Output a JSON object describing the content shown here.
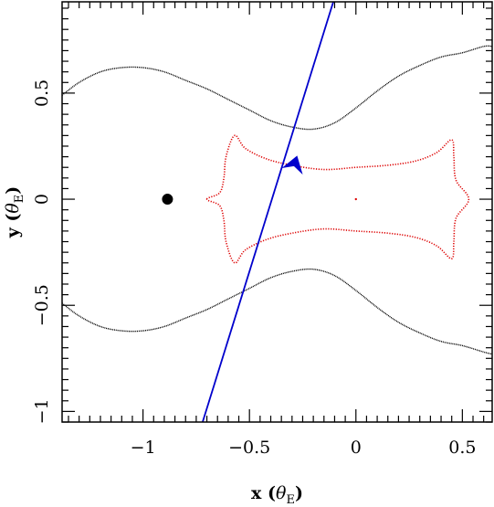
{
  "chart_data": {
    "type": "line",
    "xlabel": {
      "main": "x (",
      "symbol": "θ",
      "sub": "E",
      "close": ")"
    },
    "ylabel": {
      "main": "y (",
      "symbol": "θ",
      "sub": "E",
      "close": ")"
    },
    "xlim": [
      -1.38,
      0.64
    ],
    "ylim": [
      -1.05,
      0.93
    ],
    "x_ticks": [
      {
        "value": -1,
        "label": "−1"
      },
      {
        "value": -0.5,
        "label": "−0.5"
      },
      {
        "value": 0,
        "label": "0"
      },
      {
        "value": 0.5,
        "label": "0.5"
      }
    ],
    "y_ticks": [
      {
        "value": -1,
        "label": "−1"
      },
      {
        "value": -0.5,
        "label": "−0.5"
      },
      {
        "value": 0,
        "label": "0"
      },
      {
        "value": 0.5,
        "label": "0.5"
      }
    ],
    "series": [
      {
        "kind": "critical_curve_upper",
        "color": "#000000",
        "points": [
          [
            -1.38,
            0.49
          ],
          [
            -1.3,
            0.55
          ],
          [
            -1.2,
            0.6
          ],
          [
            -1.1,
            0.62
          ],
          [
            -1.0,
            0.62
          ],
          [
            -0.9,
            0.6
          ],
          [
            -0.8,
            0.56
          ],
          [
            -0.7,
            0.52
          ],
          [
            -0.6,
            0.47
          ],
          [
            -0.5,
            0.42
          ],
          [
            -0.4,
            0.37
          ],
          [
            -0.3,
            0.34
          ],
          [
            -0.2,
            0.33
          ],
          [
            -0.1,
            0.36
          ],
          [
            0.0,
            0.43
          ],
          [
            0.1,
            0.51
          ],
          [
            0.2,
            0.58
          ],
          [
            0.3,
            0.63
          ],
          [
            0.4,
            0.67
          ],
          [
            0.5,
            0.69
          ],
          [
            0.6,
            0.72
          ],
          [
            0.64,
            0.72
          ]
        ]
      },
      {
        "kind": "critical_curve_lower",
        "color": "#000000",
        "points": [
          [
            -1.38,
            -0.49
          ],
          [
            -1.3,
            -0.55
          ],
          [
            -1.2,
            -0.6
          ],
          [
            -1.1,
            -0.62
          ],
          [
            -1.0,
            -0.62
          ],
          [
            -0.9,
            -0.6
          ],
          [
            -0.8,
            -0.56
          ],
          [
            -0.7,
            -0.52
          ],
          [
            -0.6,
            -0.47
          ],
          [
            -0.5,
            -0.42
          ],
          [
            -0.4,
            -0.37
          ],
          [
            -0.3,
            -0.34
          ],
          [
            -0.2,
            -0.33
          ],
          [
            -0.1,
            -0.36
          ],
          [
            0.0,
            -0.43
          ],
          [
            0.1,
            -0.51
          ],
          [
            0.2,
            -0.58
          ],
          [
            0.3,
            -0.63
          ],
          [
            0.4,
            -0.67
          ],
          [
            0.5,
            -0.69
          ],
          [
            0.6,
            -0.72
          ],
          [
            0.64,
            -0.73
          ]
        ]
      },
      {
        "kind": "caustic",
        "color": "#dd0000",
        "closed": true,
        "points": [
          [
            -0.7,
            0.0
          ],
          [
            -0.64,
            0.03
          ],
          [
            -0.62,
            0.1
          ],
          [
            -0.61,
            0.2
          ],
          [
            -0.57,
            0.3
          ],
          [
            -0.52,
            0.24
          ],
          [
            -0.42,
            0.19
          ],
          [
            -0.3,
            0.16
          ],
          [
            -0.15,
            0.14
          ],
          [
            0.0,
            0.15
          ],
          [
            0.15,
            0.16
          ],
          [
            0.28,
            0.18
          ],
          [
            0.38,
            0.22
          ],
          [
            0.45,
            0.28
          ],
          [
            0.46,
            0.2
          ],
          [
            0.47,
            0.09
          ],
          [
            0.53,
            0.0
          ],
          [
            0.47,
            -0.09
          ],
          [
            0.46,
            -0.2
          ],
          [
            0.45,
            -0.28
          ],
          [
            0.38,
            -0.22
          ],
          [
            0.28,
            -0.18
          ],
          [
            0.15,
            -0.16
          ],
          [
            0.0,
            -0.15
          ],
          [
            -0.15,
            -0.14
          ],
          [
            -0.3,
            -0.16
          ],
          [
            -0.42,
            -0.19
          ],
          [
            -0.52,
            -0.24
          ],
          [
            -0.57,
            -0.3
          ],
          [
            -0.61,
            -0.2
          ],
          [
            -0.62,
            -0.1
          ],
          [
            -0.64,
            -0.03
          ]
        ]
      },
      {
        "kind": "source_trajectory",
        "color": "#0000cc",
        "points": [
          [
            -0.72,
            -1.05
          ],
          [
            -0.1,
            0.95
          ]
        ]
      }
    ],
    "markers": [
      {
        "kind": "lens_mass",
        "x": -0.885,
        "y": 0.0,
        "color": "#000000",
        "size": "large"
      },
      {
        "kind": "lens_mass",
        "x": 0.0,
        "y": 0.0,
        "color": "#dd0000",
        "size": "tiny"
      }
    ],
    "arrow": {
      "x": -0.29,
      "y": 0.16,
      "direction_x": 0.31,
      "direction_y": 1.0,
      "color": "#0000cc"
    }
  }
}
